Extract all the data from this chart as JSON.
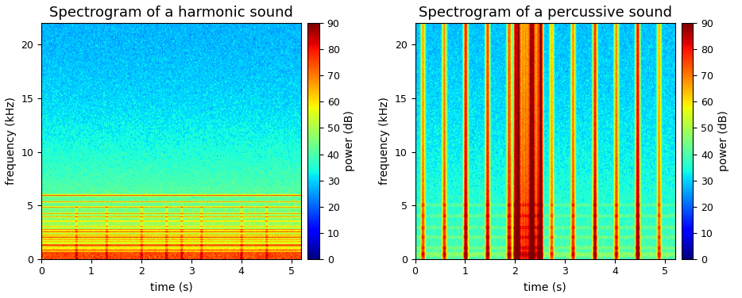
{
  "title_harmonic": "Spectrogram of a harmonic sound",
  "title_percussive": "Spectrogram of a percussive sound",
  "xlabel": "time (s)",
  "ylabel": "frequency (kHz)",
  "colorbar_label": "power (dB)",
  "time_max": 5.2,
  "freq_max": 22.0,
  "vmin": 0,
  "vmax": 90,
  "colorbar_ticks": [
    0,
    10,
    20,
    30,
    40,
    50,
    60,
    70,
    80,
    90
  ],
  "yticks": [
    0,
    5,
    10,
    15,
    20
  ],
  "xticks": [
    0,
    1,
    2,
    3,
    4,
    5
  ],
  "title_fontsize": 13,
  "label_fontsize": 10,
  "tick_fontsize": 9,
  "fig_width": 9.34,
  "fig_height": 3.76,
  "seed": 42,
  "n_time": 500,
  "n_freq": 220,
  "harmonic_base_power": 25,
  "percussive_bpm": 140,
  "percussive_base_power": 25,
  "background_color": "white"
}
